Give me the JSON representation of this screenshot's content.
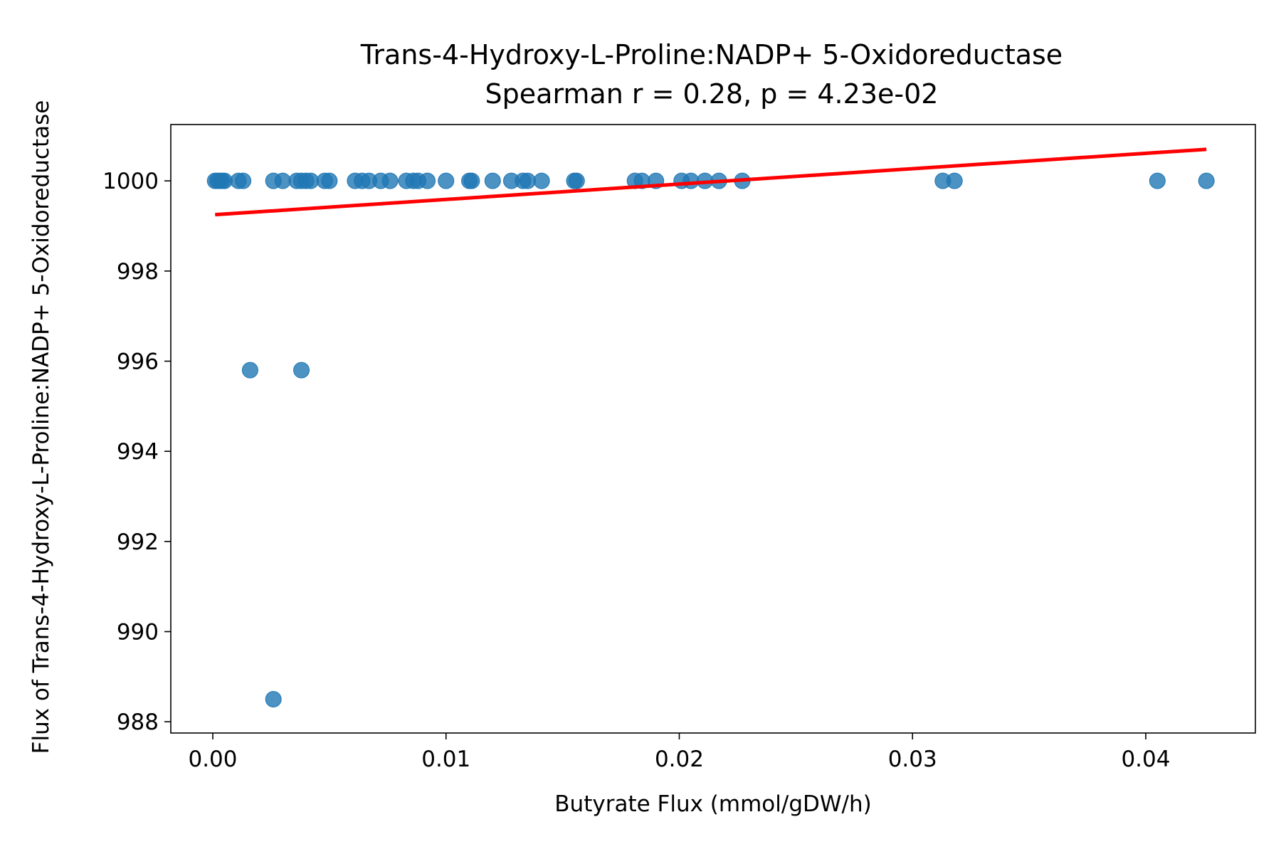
{
  "chart_data": {
    "type": "scatter",
    "title": "Trans-4-Hydroxy-L-Proline:NADP+ 5-Oxidoreductase",
    "subtitle": "Spearman r = 0.28, p = 4.23e-02",
    "xlabel": "Butyrate Flux (mmol/gDW/h)",
    "ylabel": "Flux of Trans-4-Hydroxy-L-Proline:NADP+ 5-Oxidoreductase",
    "xlim": [
      -0.0018,
      0.0447
    ],
    "ylim": [
      987.75,
      1001.25
    ],
    "xticks": [
      0.0,
      0.01,
      0.02,
      0.03,
      0.04
    ],
    "xtick_labels": [
      "0.00",
      "0.01",
      "0.02",
      "0.03",
      "0.04"
    ],
    "yticks": [
      988,
      990,
      992,
      994,
      996,
      998,
      1000
    ],
    "ytick_labels": [
      "988",
      "990",
      "992",
      "994",
      "996",
      "998",
      "1000"
    ],
    "grid": false,
    "point_color": "#1f77b4",
    "fit_color": "#ff0000",
    "points": {
      "x": [
        0.0001,
        0.0002,
        0.0003,
        0.0004,
        0.0005,
        0.0011,
        0.0013,
        0.0026,
        0.003,
        0.0036,
        0.0038,
        0.004,
        0.0042,
        0.0048,
        0.005,
        0.0061,
        0.0064,
        0.0067,
        0.0072,
        0.0076,
        0.0083,
        0.0086,
        0.0088,
        0.0092,
        0.01,
        0.011,
        0.0111,
        0.012,
        0.0128,
        0.0133,
        0.0135,
        0.0141,
        0.0155,
        0.0156,
        0.0181,
        0.0184,
        0.019,
        0.0201,
        0.0205,
        0.0211,
        0.0217,
        0.0227,
        0.0313,
        0.0318,
        0.0405,
        0.0426,
        0.0016,
        0.0038,
        0.0026
      ],
      "y": [
        1000,
        1000,
        1000,
        1000,
        1000,
        1000,
        1000,
        1000,
        1000,
        1000,
        1000,
        1000,
        1000,
        1000,
        1000,
        1000,
        1000,
        1000,
        1000,
        1000,
        1000,
        1000,
        1000,
        1000,
        1000,
        1000,
        1000,
        1000,
        1000,
        1000,
        1000,
        1000,
        1000,
        1000,
        1000,
        1000,
        1000,
        1000,
        1000,
        1000,
        1000,
        1000,
        1000,
        1000,
        1000,
        1000,
        995.8,
        995.8,
        988.5
      ]
    },
    "fit_line": {
      "x": [
        0.0001,
        0.0426
      ],
      "y": [
        999.25,
        1000.7
      ]
    }
  }
}
